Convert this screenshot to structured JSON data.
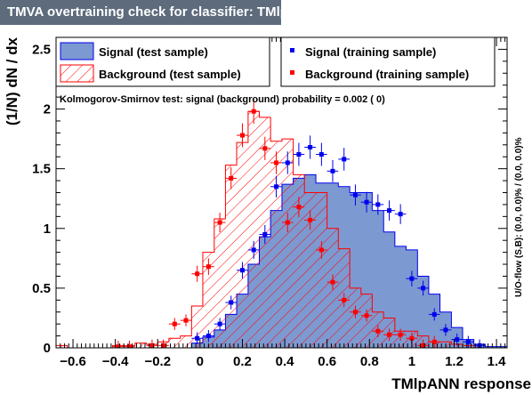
{
  "title": "TMVA overtraining check for classifier: TMlpANN",
  "ks_text": "Kolmogorov-Smirnov test: signal (background) probability = 0.002 (    0)",
  "side_text": "U/O-flow (S,B): (0.0, 0.0)% / (0.0, 0.0)%",
  "colors": {
    "signal_fill": "#7d99d1",
    "signal_line": "#0000ee",
    "background_line": "#ff0000",
    "title_bg": "#5d6b7d"
  },
  "chart_data": {
    "type": "histogram",
    "title": "TMVA overtraining check for classifier: TMlpANN",
    "xlabel": "TMlpANN response",
    "ylabel": "(1/N) dN / dx",
    "xlim": [
      -0.68,
      1.45
    ],
    "ylim": [
      0,
      2.6
    ],
    "x_ticks": [
      "−0.6",
      "−0.4",
      "−0.2",
      "0",
      "0.2",
      "0.4",
      "0.6",
      "0.8",
      "1",
      "1.2",
      "1.4"
    ],
    "y_ticks": [
      "0",
      "0.5",
      "1",
      "1.5",
      "2",
      "2.5"
    ],
    "bin_edges": [
      -0.68,
      -0.627,
      -0.573,
      -0.52,
      -0.467,
      -0.413,
      -0.36,
      -0.307,
      -0.253,
      -0.2,
      -0.147,
      -0.093,
      -0.04,
      0.013,
      0.067,
      0.12,
      0.173,
      0.227,
      0.28,
      0.333,
      0.387,
      0.44,
      0.493,
      0.547,
      0.6,
      0.653,
      0.707,
      0.76,
      0.813,
      0.867,
      0.92,
      0.973,
      1.027,
      1.08,
      1.133,
      1.187,
      1.24,
      1.293,
      1.347,
      1.4,
      1.453
    ],
    "series": [
      {
        "name": "Signal (test sample)",
        "style": "filled",
        "values": [
          0,
          0,
          0,
          0,
          0,
          0,
          0,
          0,
          0,
          0,
          0,
          0,
          0.04,
          0.09,
          0.15,
          0.28,
          0.45,
          0.7,
          0.93,
          1.15,
          1.37,
          1.42,
          1.45,
          1.38,
          1.38,
          1.35,
          1.3,
          1.3,
          1.15,
          0.97,
          0.85,
          0.82,
          0.6,
          0.45,
          0.3,
          0.17,
          0.07,
          0.03,
          0.01,
          0.01
        ]
      },
      {
        "name": "Background (test sample)",
        "style": "hatched",
        "values": [
          0.02,
          0,
          0,
          0,
          0,
          0.02,
          0.02,
          0.04,
          0.03,
          0.05,
          0.08,
          0.1,
          0.35,
          0.8,
          1.08,
          1.53,
          1.72,
          1.98,
          1.93,
          1.73,
          1.75,
          1.45,
          1.3,
          1.3,
          1.0,
          0.83,
          0.5,
          0.45,
          0.3,
          0.25,
          0.14,
          0.14,
          0.1,
          0.05,
          0.05,
          0.03,
          0.02,
          0,
          0,
          0
        ]
      },
      {
        "name": "Signal (training sample)",
        "style": "points",
        "values": [
          null,
          null,
          null,
          null,
          null,
          null,
          null,
          null,
          null,
          null,
          null,
          null,
          0.08,
          0.1,
          0.2,
          0.38,
          0.65,
          0.82,
          0.95,
          1.35,
          1.55,
          1.62,
          1.68,
          1.62,
          1.48,
          1.58,
          1.28,
          1.22,
          1.2,
          1.15,
          1.12,
          0.58,
          0.5,
          0.28,
          0.15,
          0.07,
          0.05,
          0.02,
          null,
          null
        ]
      },
      {
        "name": "Background (training sample)",
        "style": "points",
        "values": [
          null,
          null,
          null,
          null,
          null,
          0.01,
          0.01,
          null,
          0.02,
          0.02,
          0.2,
          0.23,
          0.62,
          0.68,
          1.05,
          1.42,
          1.78,
          1.98,
          1.67,
          1.55,
          1.05,
          1.18,
          1.07,
          0.82,
          0.55,
          0.4,
          0.3,
          0.27,
          0.14,
          0.11,
          0.11,
          0.08,
          0.02,
          0.05,
          null,
          null,
          null,
          null,
          null,
          null
        ]
      }
    ]
  }
}
